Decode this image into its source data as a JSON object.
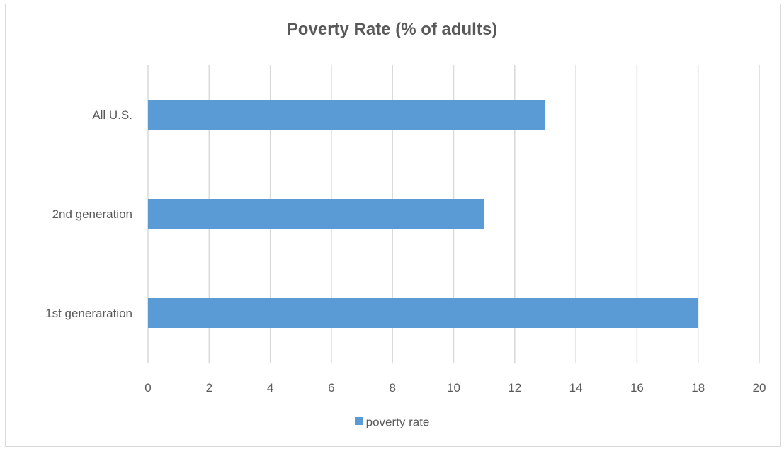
{
  "chart_data": {
    "type": "bar",
    "orientation": "horizontal",
    "title": "Poverty Rate (% of adults)",
    "categories": [
      "1st generaration",
      "2nd generation",
      "All U.S."
    ],
    "series": [
      {
        "name": "poverty rate",
        "values": [
          18,
          11,
          13
        ],
        "color": "#5b9bd5"
      }
    ],
    "xlim": [
      0,
      20
    ],
    "x_ticks": [
      0,
      2,
      4,
      6,
      8,
      10,
      12,
      14,
      16,
      18,
      20
    ],
    "grid": "vertical",
    "legend_position": "bottom"
  }
}
